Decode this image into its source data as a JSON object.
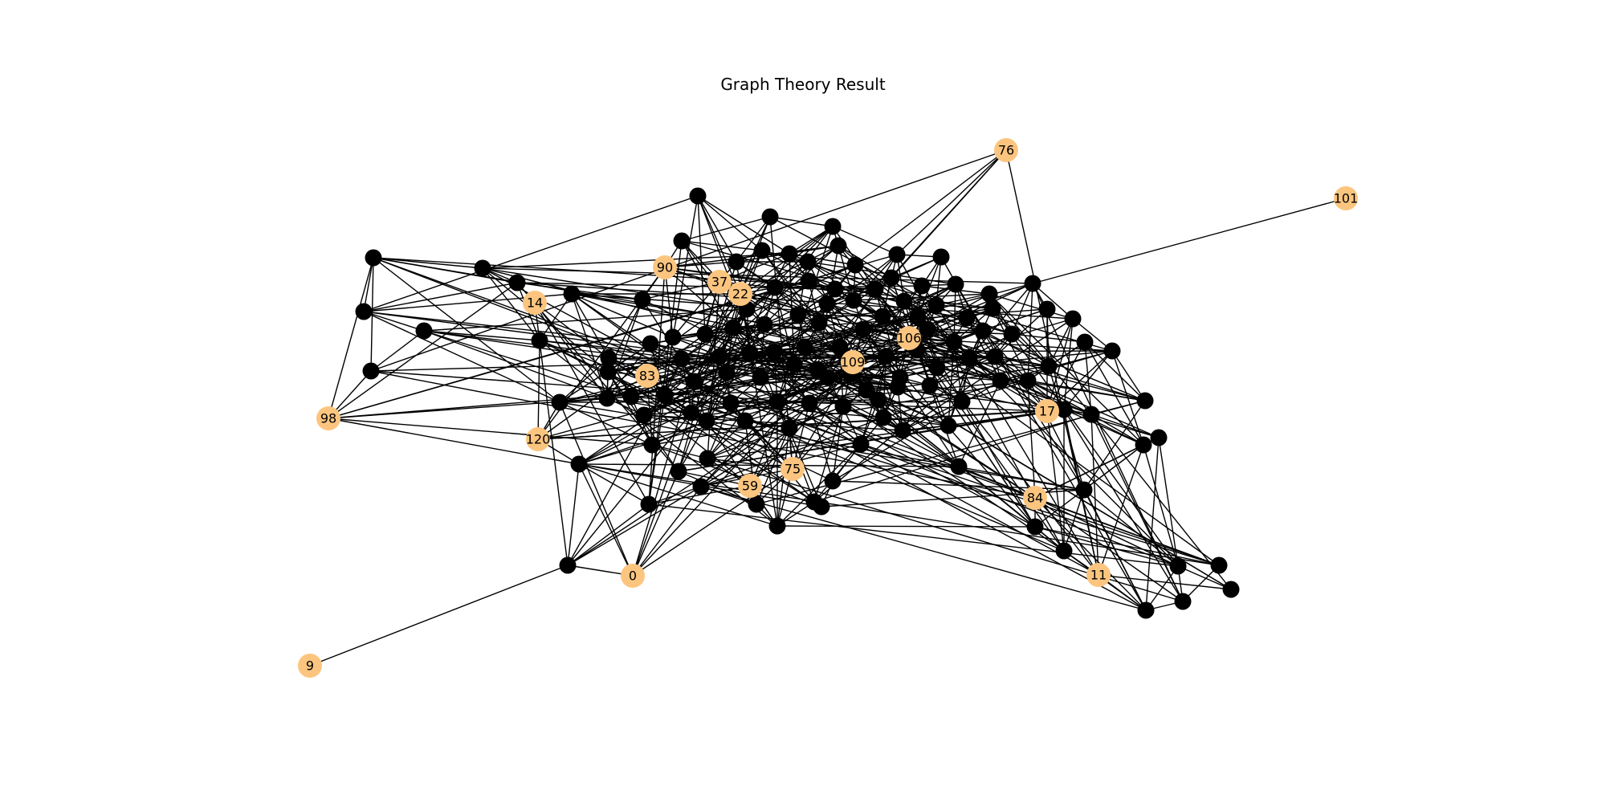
{
  "title": "Graph Theory Result",
  "colors": {
    "highlight": "#fcc57f",
    "node": "#000000",
    "edge": "#000000"
  },
  "highlighted_nodes": [
    {
      "id": "76",
      "label": "76"
    },
    {
      "id": "101",
      "label": "101"
    },
    {
      "id": "90",
      "label": "90"
    },
    {
      "id": "37",
      "label": "37"
    },
    {
      "id": "22",
      "label": "22"
    },
    {
      "id": "14",
      "label": "14"
    },
    {
      "id": "106",
      "label": "106"
    },
    {
      "id": "109",
      "label": "109"
    },
    {
      "id": "83",
      "label": "83"
    },
    {
      "id": "17",
      "label": "17"
    },
    {
      "id": "98",
      "label": "98"
    },
    {
      "id": "120",
      "label": "120"
    },
    {
      "id": "75",
      "label": "75"
    },
    {
      "id": "59",
      "label": "59"
    },
    {
      "id": "84",
      "label": "84"
    },
    {
      "id": "0",
      "label": "0"
    },
    {
      "id": "11",
      "label": "11"
    },
    {
      "id": "9",
      "label": "9"
    }
  ]
}
